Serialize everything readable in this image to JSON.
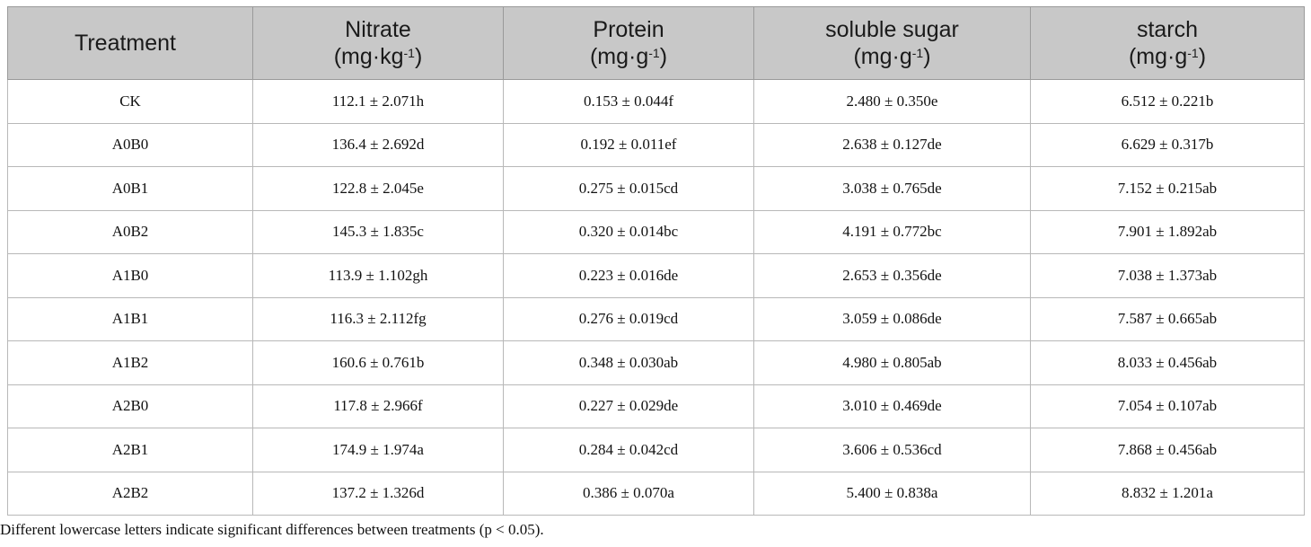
{
  "table": {
    "headers": [
      {
        "label": "Treatment",
        "unit_base": "",
        "unit_sup": "",
        "unit_close": ""
      },
      {
        "label": "Nitrate",
        "unit_base": "(mg·kg",
        "unit_sup": "-1",
        "unit_close": ")"
      },
      {
        "label": "Protein",
        "unit_base": "(mg·g",
        "unit_sup": "-1",
        "unit_close": ")"
      },
      {
        "label": "soluble sugar",
        "unit_base": "(mg·g",
        "unit_sup": "-1",
        "unit_close": ")"
      },
      {
        "label": "starch",
        "unit_base": "(mg·g",
        "unit_sup": "-1",
        "unit_close": ")"
      }
    ],
    "rows": [
      [
        "CK",
        "112.1 ± 2.071h",
        "0.153 ± 0.044f",
        "2.480 ± 0.350e",
        "6.512 ± 0.221b"
      ],
      [
        "A0B0",
        "136.4 ± 2.692d",
        "0.192 ± 0.011ef",
        "2.638 ± 0.127de",
        "6.629 ± 0.317b"
      ],
      [
        "A0B1",
        "122.8 ± 2.045e",
        "0.275 ± 0.015cd",
        "3.038 ± 0.765de",
        "7.152 ± 0.215ab"
      ],
      [
        "A0B2",
        "145.3 ± 1.835c",
        "0.320 ± 0.014bc",
        "4.191 ± 0.772bc",
        "7.901 ± 1.892ab"
      ],
      [
        "A1B0",
        "113.9 ± 1.102gh",
        "0.223 ± 0.016de",
        "2.653 ± 0.356de",
        "7.038 ± 1.373ab"
      ],
      [
        "A1B1",
        "116.3 ± 2.112fg",
        "0.276 ± 0.019cd",
        "3.059 ± 0.086de",
        "7.587 ± 0.665ab"
      ],
      [
        "A1B2",
        "160.6 ± 0.761b",
        "0.348 ± 0.030ab",
        "4.980 ± 0.805ab",
        "8.033 ± 0.456ab"
      ],
      [
        "A2B0",
        "117.8 ± 2.966f",
        "0.227 ± 0.029de",
        "3.010 ± 0.469de",
        "7.054 ± 0.107ab"
      ],
      [
        "A2B1",
        "174.9 ± 1.974a",
        "0.284 ± 0.042cd",
        "3.606 ± 0.536cd",
        "7.868 ± 0.456ab"
      ],
      [
        "A2B2",
        "137.2 ± 1.326d",
        "0.386 ± 0.070a",
        "5.400 ± 0.838a",
        "8.832 ± 1.201a"
      ]
    ]
  },
  "footnote": "Different lowercase letters indicate significant differences between treatments (p < 0.05).",
  "colors": {
    "header_bg": "#c8c8c8",
    "border": "#b8b8b8",
    "text": "#111111"
  }
}
